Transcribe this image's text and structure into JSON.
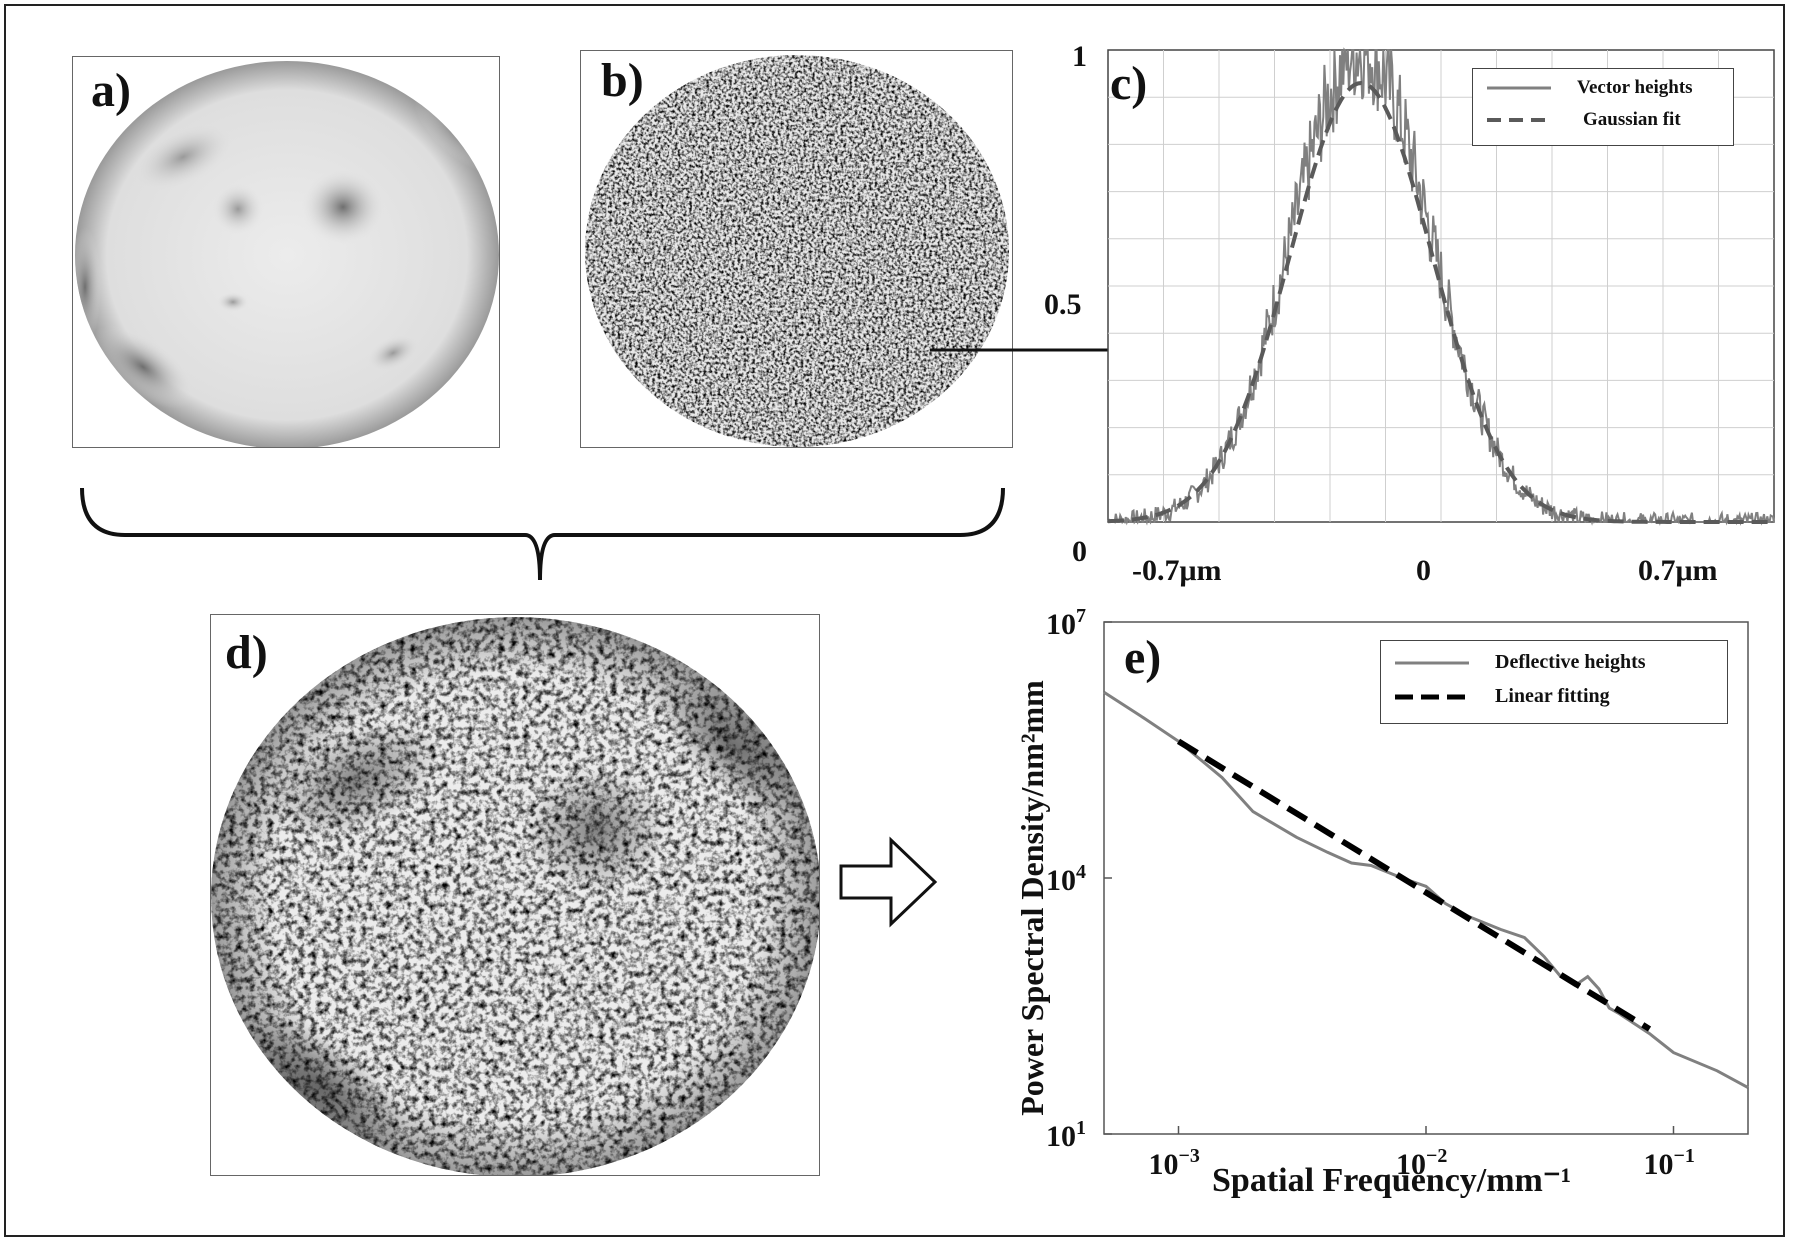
{
  "panels": {
    "a": {
      "label": "a)"
    },
    "b": {
      "label": "b)"
    },
    "c": {
      "label": "c)"
    },
    "d": {
      "label": "d)"
    },
    "e": {
      "label": "e)"
    }
  },
  "colors": {
    "curve": "#808080",
    "fit_c": "#5a5a5a",
    "fit_e": "#000000",
    "grid": "#cfcfcf",
    "frame": "#222222"
  },
  "chart_data": [
    {
      "panel": "c",
      "type": "line",
      "ylim": [
        0,
        1
      ],
      "y_ticks": [
        "0",
        "0.5",
        "1"
      ],
      "x_tick_labels": [
        "-0.7μm",
        "0",
        "0.7μm"
      ],
      "grid": true,
      "legend_position": "top-right",
      "series": [
        {
          "name": "Vector heights",
          "style": "solid",
          "shape": "noisy gaussian",
          "peak": 1.0
        },
        {
          "name": "Gaussian fit",
          "style": "dashed",
          "shape": "gaussian",
          "peak": 0.93
        }
      ]
    },
    {
      "panel": "e",
      "type": "line",
      "xscale": "log",
      "yscale": "log",
      "xlabel": "Spatial Frequency/mm⁻¹",
      "ylabel": "Power Spectral Density/nm²mm",
      "x_ticks": [
        {
          "base": "10",
          "exp": "−3"
        },
        {
          "base": "10",
          "exp": "−2"
        },
        {
          "base": "10",
          "exp": "−1"
        }
      ],
      "y_ticks": [
        {
          "base": "10",
          "exp": "1"
        },
        {
          "base": "10",
          "exp": "4"
        },
        {
          "base": "10",
          "exp": "7"
        }
      ],
      "xlim": [
        0.0005,
        0.2
      ],
      "ylim": [
        10,
        10000000
      ],
      "legend_position": "top-right",
      "series": [
        {
          "name": "Deflective heights",
          "style": "solid",
          "points": [
            [
              0.0005,
              1500000
            ],
            [
              0.0007,
              800000
            ],
            [
              0.001,
              400000
            ],
            [
              0.0015,
              150000
            ],
            [
              0.002,
              60000
            ],
            [
              0.003,
              30000
            ],
            [
              0.004,
              20000
            ],
            [
              0.005,
              15000
            ],
            [
              0.006,
              14000
            ],
            [
              0.008,
              10000
            ],
            [
              0.01,
              8000
            ],
            [
              0.012,
              5000
            ],
            [
              0.015,
              3500
            ],
            [
              0.02,
              2500
            ],
            [
              0.025,
              2000
            ],
            [
              0.03,
              1200
            ],
            [
              0.035,
              700
            ],
            [
              0.04,
              550
            ],
            [
              0.045,
              700
            ],
            [
              0.05,
              500
            ],
            [
              0.055,
              300
            ],
            [
              0.06,
              260
            ],
            [
              0.08,
              150
            ],
            [
              0.1,
              90
            ],
            [
              0.15,
              55
            ],
            [
              0.2,
              35
            ]
          ]
        },
        {
          "name": "Linear fitting",
          "style": "dashed",
          "points": [
            [
              0.001,
              400000
            ],
            [
              0.08,
              170
            ]
          ]
        }
      ]
    }
  ]
}
